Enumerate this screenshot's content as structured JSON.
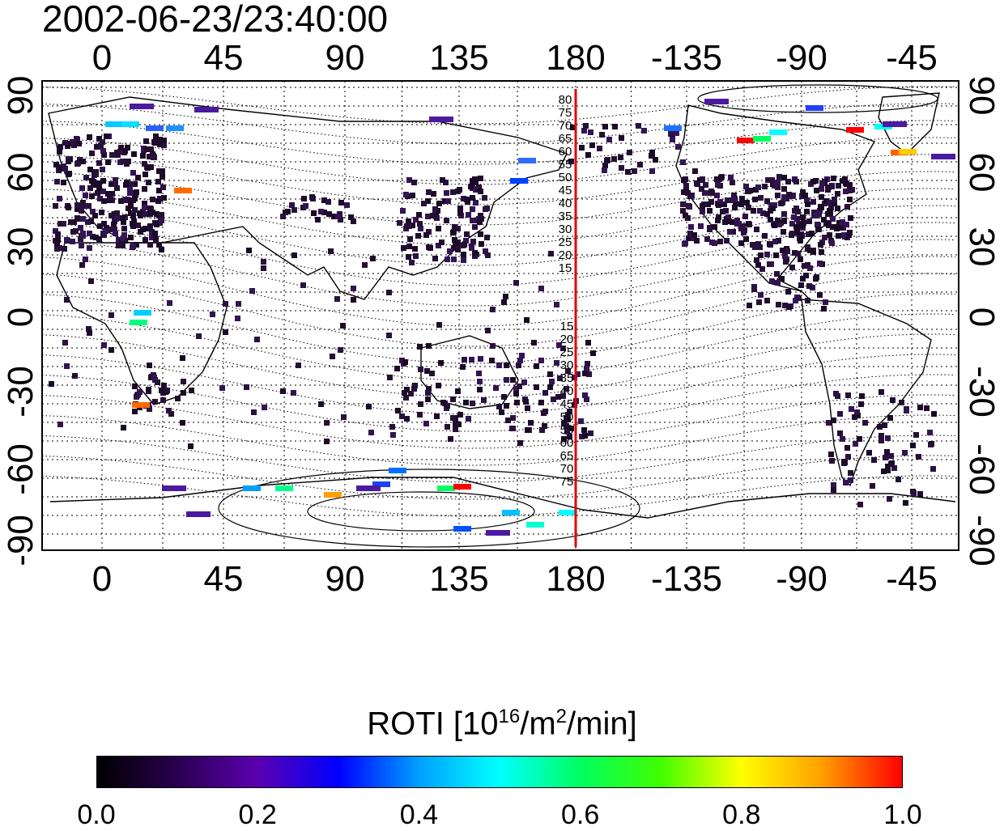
{
  "timestamp": "2002-06-23/23:40:00",
  "map": {
    "top_lon_labels": [
      "0",
      "45",
      "90",
      "135",
      "180",
      "-135",
      "-90",
      "-45"
    ],
    "bottom_lon_labels": [
      "0",
      "45",
      "90",
      "135",
      "180",
      "-135",
      "-90",
      "-45"
    ],
    "left_lat_labels": [
      "90",
      "60",
      "30",
      "0",
      "-30",
      "-60",
      "-90"
    ],
    "right_lat_labels": [
      "90",
      "60",
      "30",
      "0",
      "-30",
      "-60",
      "-90"
    ],
    "north_contour_labels": [
      "80",
      "75",
      "70",
      "65",
      "60",
      "55",
      "50",
      "45",
      "40",
      "35",
      "30",
      "25",
      "20",
      "15"
    ],
    "south_contour_labels": [
      "15",
      "20",
      "25",
      "30",
      "35",
      "40",
      "45",
      "50",
      "55",
      "60",
      "65",
      "70",
      "75"
    ],
    "marker_line_color": "#e00000"
  },
  "colorbar": {
    "title_main": "ROTI  [10",
    "title_sup1": "16",
    "title_mid": "/m",
    "title_sup2": "2",
    "title_end": "/min]",
    "ticks": [
      "0.0",
      "0.2",
      "0.4",
      "0.6",
      "0.8",
      "1.0"
    ],
    "colors": [
      "#000000",
      "#2a0050",
      "#5a00b0",
      "#0000ff",
      "#00a0ff",
      "#00ffff",
      "#00ff60",
      "#40ff00",
      "#ffff00",
      "#ffa000",
      "#ff0000"
    ]
  }
}
